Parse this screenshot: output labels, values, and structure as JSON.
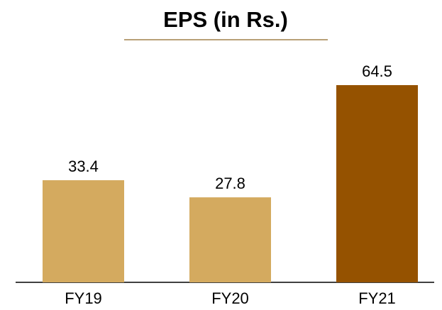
{
  "chart_data": {
    "type": "bar",
    "title": "EPS (in Rs.)",
    "categories": [
      "FY19",
      "FY20",
      "FY21"
    ],
    "values": [
      33.4,
      27.8,
      64.5
    ],
    "colors": [
      "#d4aa5f",
      "#d4aa5f",
      "#955200"
    ]
  }
}
